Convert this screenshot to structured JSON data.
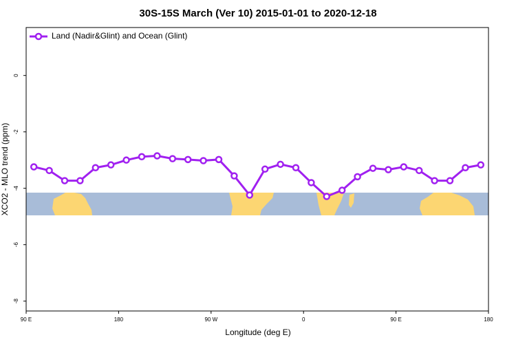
{
  "chart_data": {
    "type": "line",
    "title": "30S-15S March (Ver 10)   2015-01-01 to 2020-12-18",
    "x_label": "Longitude (deg E)",
    "y_label": "XCO2 - MLO trend (ppm)",
    "xlim": [
      90,
      540
    ],
    "ylim": [
      -8.35,
      1.7
    ],
    "xticks": [
      {
        "value": 90,
        "label": "90 E"
      },
      {
        "value": 180,
        "label": "180"
      },
      {
        "value": 270,
        "label": "90 W"
      },
      {
        "value": 360,
        "label": "0"
      },
      {
        "value": 450,
        "label": "90 E"
      },
      {
        "value": 540,
        "label": "180"
      }
    ],
    "yticks": [
      0,
      -2,
      -4,
      -6,
      -8
    ],
    "legend": "top-left",
    "x": [
      97.5,
      112.5,
      127.5,
      142.5,
      157.5,
      172.5,
      187.5,
      202.5,
      217.5,
      232.5,
      247.5,
      262.5,
      277.5,
      292.5,
      307.5,
      322.5,
      337.5,
      352.5,
      367.5,
      382.5,
      397.5,
      412.5,
      427.5,
      442.5,
      457.5,
      472.5,
      487.5,
      502.5,
      517.5,
      532.5
    ],
    "series": [
      {
        "name": "Land (Nadir&Glint) and Ocean (Glint)",
        "color": "#a020f0",
        "values": [
          -3.24,
          -3.37,
          -3.73,
          -3.73,
          -3.27,
          -3.17,
          -3.0,
          -2.88,
          -2.85,
          -2.95,
          -2.98,
          -3.02,
          -2.98,
          -3.56,
          -4.24,
          -3.32,
          -3.15,
          -3.27,
          -3.8,
          -4.29,
          -4.07,
          -3.59,
          -3.29,
          -3.34,
          -3.24,
          -3.37,
          -3.73,
          -3.73,
          -3.27,
          -3.17
        ]
      }
    ]
  }
}
